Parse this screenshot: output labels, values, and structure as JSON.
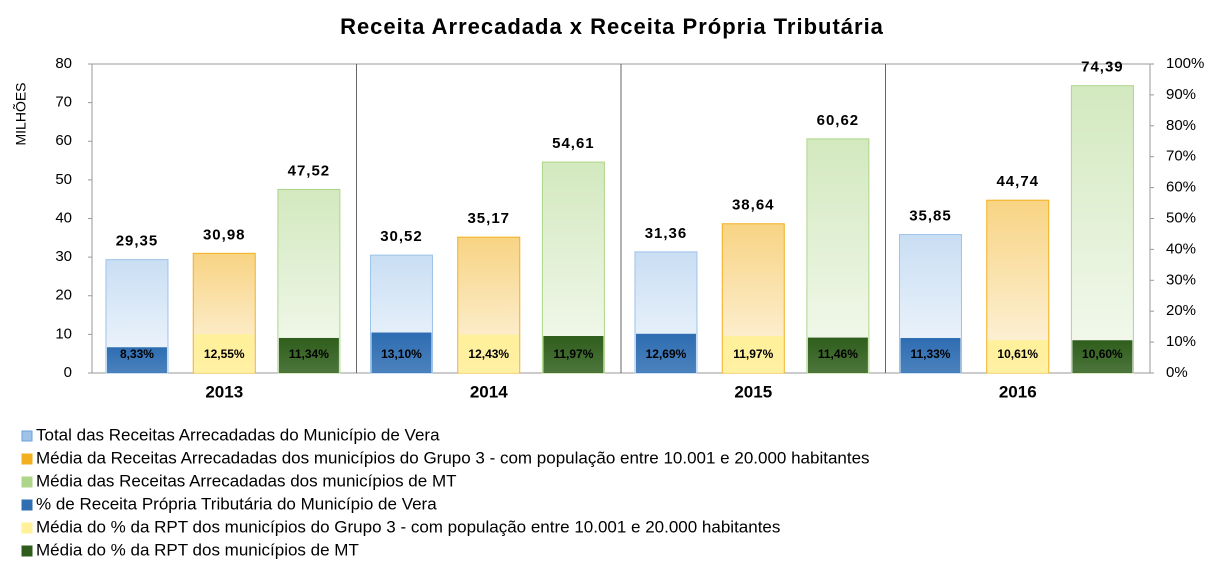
{
  "chart_data": {
    "type": "bar",
    "title": "Receita Arrecadada x Receita Própria Tributária",
    "y_label": "MILHÕES",
    "categories": [
      "2013",
      "2014",
      "2015",
      "2016"
    ],
    "series": [
      {
        "name": "Total das Receitas Arrecadadas do Município de Vera",
        "color": "#9dc3ea",
        "values": [
          29.35,
          30.52,
          31.36,
          35.85
        ],
        "value_labels": [
          "29,35",
          "30,52",
          "31,36",
          "35,85"
        ]
      },
      {
        "name": "Média da Receitas Arrecadadas dos municípios do Grupo 3 - com população entre 10.001 e 20.000 habitantes",
        "color": "#f2b01e",
        "values": [
          30.98,
          35.17,
          38.64,
          44.74
        ],
        "value_labels": [
          "30,98",
          "35,17",
          "38,64",
          "44,74"
        ]
      },
      {
        "name": "Média das Receitas Arrecadadas dos municípios de MT",
        "color": "#aed68a",
        "values": [
          47.52,
          54.61,
          60.62,
          74.39
        ],
        "value_labels": [
          "47,52",
          "54,61",
          "60,62",
          "74,39"
        ]
      },
      {
        "name": "% de Receita Própria Tributária do Município de Vera",
        "color": "#2e6db2",
        "axis": "y2",
        "values": [
          8.33,
          13.1,
          12.69,
          11.33
        ],
        "value_labels": [
          "8,33%",
          "13,10%",
          "12,69%",
          "11,33%"
        ]
      },
      {
        "name": "Média do % da RPT dos municípios do Grupo 3 - com população entre 10.001 e 20.000 habitantes",
        "color": "#fff09a",
        "axis": "y2",
        "values": [
          12.55,
          12.43,
          11.97,
          10.61
        ],
        "value_labels": [
          "12,55%",
          "12,43%",
          "11,97%",
          "10,61%"
        ]
      },
      {
        "name": "Média do % da RPT dos municípios de MT",
        "color": "#2f5e1c",
        "axis": "y2",
        "values": [
          11.34,
          11.97,
          11.46,
          10.6
        ],
        "value_labels": [
          "11,34%",
          "11,97%",
          "11,46%",
          "10,60%"
        ]
      }
    ],
    "ylim": [
      0,
      80
    ],
    "yticks": [
      0,
      10,
      20,
      30,
      40,
      50,
      60,
      70,
      80
    ],
    "y2lim": [
      0,
      100
    ],
    "y2ticks": [
      {
        "value": 0,
        "label": "0%"
      },
      {
        "value": 10,
        "label": "10%"
      },
      {
        "value": 20,
        "label": "20%"
      },
      {
        "value": 30,
        "label": "30%"
      },
      {
        "value": 40,
        "label": "40%"
      },
      {
        "value": 50,
        "label": "50%"
      },
      {
        "value": 60,
        "label": "60%"
      },
      {
        "value": 70,
        "label": "70%"
      },
      {
        "value": 80,
        "label": "80%"
      },
      {
        "value": 90,
        "label": "90%"
      },
      {
        "value": 100,
        "label": "100%"
      }
    ],
    "legend": "bottom"
  }
}
